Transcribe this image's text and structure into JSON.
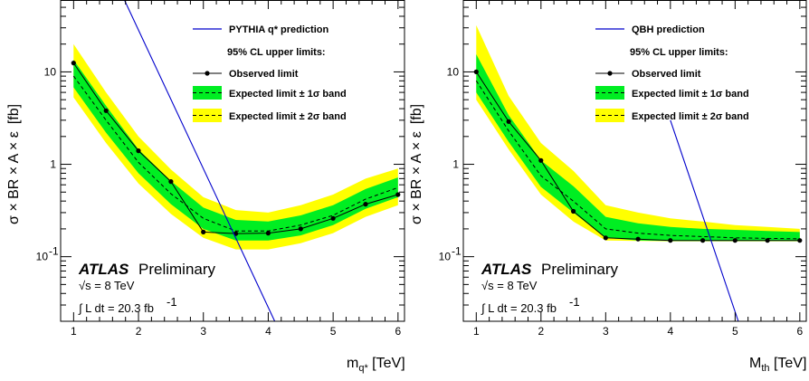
{
  "chart_data": [
    {
      "type": "line",
      "xlabel": "m",
      "xlabel_sub": "q*",
      "xlabel_unit": "[TeV]",
      "ylabel": "σ × BR × A × ε",
      "ylabel_unit": "[fb]",
      "xlim": [
        0.8,
        6.1
      ],
      "ylim": [
        0.02,
        60
      ],
      "yscale": "log",
      "x_ticks": [
        1,
        2,
        3,
        4,
        5,
        6
      ],
      "y_ticks": [
        {
          "value": 10,
          "label": "10"
        },
        {
          "value": 1,
          "label": "1"
        },
        {
          "value": 0.1,
          "label": "10",
          "sup": "-1"
        }
      ],
      "observed": {
        "x": [
          1,
          1.5,
          2,
          2.5,
          3,
          3.5,
          4,
          4.5,
          5,
          5.5,
          6
        ],
        "y": [
          12.5,
          3.8,
          1.4,
          0.65,
          0.185,
          0.178,
          0.18,
          0.2,
          0.26,
          0.37,
          0.47
        ]
      },
      "expected": {
        "x": [
          1,
          1.5,
          2,
          2.5,
          3,
          3.5,
          4,
          4.5,
          5,
          5.5,
          6
        ],
        "y": [
          9.0,
          3.0,
          1.05,
          0.48,
          0.26,
          0.19,
          0.19,
          0.22,
          0.28,
          0.42,
          0.56
        ]
      },
      "band_1sigma": {
        "lo": [
          6.8,
          2.2,
          0.8,
          0.37,
          0.2,
          0.15,
          0.15,
          0.17,
          0.22,
          0.33,
          0.44
        ],
        "hi": [
          13.5,
          4.3,
          1.45,
          0.66,
          0.34,
          0.25,
          0.24,
          0.28,
          0.36,
          0.54,
          0.72
        ]
      },
      "band_2sigma": {
        "lo": [
          5.3,
          1.7,
          0.62,
          0.29,
          0.16,
          0.12,
          0.12,
          0.14,
          0.18,
          0.27,
          0.36
        ],
        "hi": [
          20,
          6.0,
          2.0,
          0.88,
          0.44,
          0.32,
          0.3,
          0.36,
          0.47,
          0.7,
          0.9
        ]
      },
      "prediction": {
        "x": [
          1.7,
          4.1
        ],
        "y": [
          80,
          0.02
        ]
      },
      "legend": {
        "prediction_label": "PYTHIA q* prediction",
        "header": "95% CL upper limits:",
        "observed_label": "Observed limit",
        "expected_1sigma_label": "Expected limit ± 1σ band",
        "expected_2sigma_label": "Expected limit ± 2σ band",
        "placement": "top-right"
      },
      "atlas": {
        "label": "ATLAS",
        "status": "Preliminary",
        "energy": "√s = 8 TeV",
        "lumi_prefix": "∫ L dt = 20.3 fb",
        "lumi_sup": "-1"
      }
    },
    {
      "type": "line",
      "xlabel": "M",
      "xlabel_sub": "th",
      "xlabel_unit": "[TeV]",
      "ylabel": "σ × BR × A × ε",
      "ylabel_unit": "[fb]",
      "xlim": [
        0.8,
        6.1
      ],
      "ylim": [
        0.02,
        60
      ],
      "yscale": "log",
      "x_ticks": [
        1,
        2,
        3,
        4,
        5,
        6
      ],
      "y_ticks": [
        {
          "value": 10,
          "label": "10"
        },
        {
          "value": 1,
          "label": "1"
        },
        {
          "value": 0.1,
          "label": "10",
          "sup": "-1"
        }
      ],
      "observed": {
        "x": [
          1,
          1.5,
          2,
          2.5,
          3,
          3.5,
          4,
          4.5,
          5,
          5.5,
          6
        ],
        "y": [
          10,
          2.9,
          1.1,
          0.31,
          0.16,
          0.155,
          0.15,
          0.15,
          0.15,
          0.15,
          0.15
        ]
      },
      "expected": {
        "x": [
          1,
          1.5,
          2,
          2.5,
          3,
          3.5,
          4,
          4.5,
          5,
          5.5,
          6
        ],
        "y": [
          8.0,
          2.3,
          0.75,
          0.4,
          0.2,
          0.18,
          0.17,
          0.165,
          0.16,
          0.158,
          0.156
        ]
      },
      "band_1sigma": {
        "lo": [
          6.0,
          1.75,
          0.57,
          0.3,
          0.16,
          0.15,
          0.148,
          0.148,
          0.148,
          0.148,
          0.148
        ],
        "hi": [
          15.5,
          3.4,
          1.1,
          0.58,
          0.27,
          0.23,
          0.21,
          0.2,
          0.195,
          0.19,
          0.185
        ]
      },
      "band_2sigma": {
        "lo": [
          5.0,
          1.45,
          0.47,
          0.24,
          0.15,
          0.148,
          0.147,
          0.147,
          0.147,
          0.147,
          0.147
        ],
        "hi": [
          32,
          5.5,
          1.7,
          0.85,
          0.36,
          0.3,
          0.26,
          0.24,
          0.22,
          0.21,
          0.2
        ]
      },
      "prediction": {
        "x": [
          4.0,
          5.05
        ],
        "y": [
          3.0,
          0.02
        ]
      },
      "legend": {
        "prediction_label": "QBH prediction",
        "header": "95% CL upper limits:",
        "observed_label": "Observed limit",
        "expected_1sigma_label": "Expected limit ± 1σ band",
        "expected_2sigma_label": "Expected limit ± 2σ band",
        "placement": "top-right"
      },
      "atlas": {
        "label": "ATLAS",
        "status": "Preliminary",
        "energy": "√s = 8 TeV",
        "lumi_prefix": "∫ L dt = 20.3 fb",
        "lumi_sup": "-1"
      }
    }
  ],
  "colors": {
    "band_1sigma": "#00ee22",
    "band_2sigma": "#ffff00",
    "prediction": "#0000cc",
    "observed": "#000000",
    "expected": "#000000"
  }
}
